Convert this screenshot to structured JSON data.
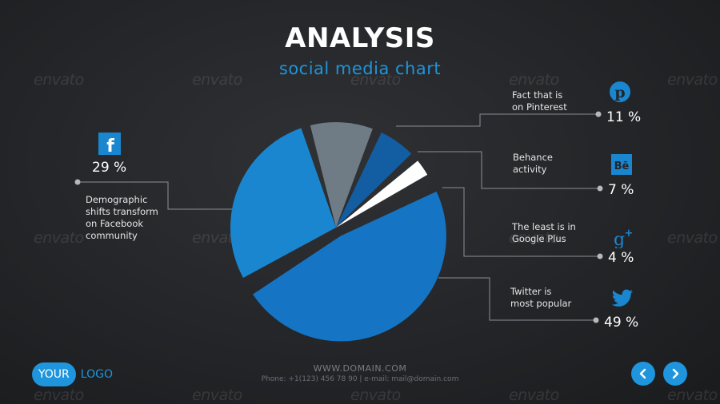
{
  "header": {
    "title": "ANALYSIS",
    "subtitle": "social media chart"
  },
  "watermark": "envato",
  "colors": {
    "accent": "#1e95dc",
    "background": "#232528",
    "facebook": "#1a86d0",
    "pinterest": "#6f7c85",
    "behance": "#135da3",
    "googleplus": "#ffffff",
    "twitter": "#1575c4",
    "connector": "#8b8f95"
  },
  "chart_data": {
    "type": "pie",
    "title": "ANALYSIS",
    "subtitle": "social media chart",
    "slices": [
      {
        "key": "twitter",
        "label": "49 %",
        "value": 49,
        "description": "Twitter is\nmost popular",
        "icon": "twitter-bird-icon",
        "exploded": true
      },
      {
        "key": "facebook",
        "label": "29 %",
        "value": 29,
        "description": "Demographic\nshifts transform\non Facebook\ncommunity",
        "icon": "facebook-icon",
        "exploded": false
      },
      {
        "key": "pinterest",
        "label": "11 %",
        "value": 11,
        "description": "Fact that is\non Pinterest",
        "icon": "pinterest-icon",
        "exploded": false
      },
      {
        "key": "behance",
        "label": "7 %",
        "value": 7,
        "description": "Behance\nactivity",
        "icon": "behance-icon",
        "exploded": false
      },
      {
        "key": "googleplus",
        "label": "4 %",
        "value": 4,
        "description": "The least is in\nGoogle Plus",
        "icon": "google-plus-icon",
        "exploded": false
      }
    ]
  },
  "footer": {
    "url": "WWW.DOMAIN.COM",
    "contact": "Phone: +1(123) 456 78 90 | e-mail: mail@domain.com",
    "logo_pill": "YOUR",
    "logo_text": "LOGO"
  }
}
